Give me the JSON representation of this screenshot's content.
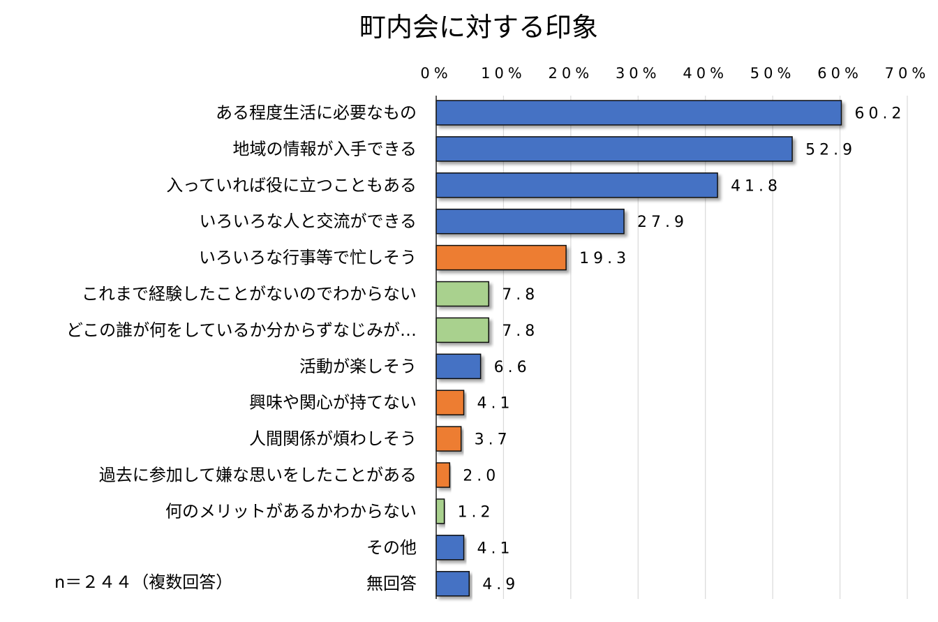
{
  "chart_data": {
    "type": "bar",
    "orientation": "horizontal",
    "title": "町内会に対する印象",
    "xlim": [
      0,
      70
    ],
    "x_ticks": [
      "0%",
      "10%",
      "20%",
      "30%",
      "40%",
      "50%",
      "60%",
      "70%"
    ],
    "grid": true,
    "categories": [
      "ある程度生活に必要なもの",
      "地域の情報が入手できる",
      "入っていれば役に立つこともある",
      "いろいろな人と交流ができる",
      "いろいろな行事等で忙しそう",
      "これまで経験したことがないのでわからない",
      "どこの誰が何をしているか分からずなじみが…",
      "活動が楽しそう",
      "興味や関心が持てない",
      "人間関係が煩わしそう",
      "過去に参加して嫌な思いをしたことがある",
      "何のメリットがあるかわからない",
      "その他",
      "無回答"
    ],
    "values": [
      60.2,
      52.9,
      41.8,
      27.9,
      19.3,
      7.8,
      7.8,
      6.6,
      4.1,
      3.7,
      2.0,
      1.2,
      4.1,
      4.9
    ],
    "value_labels": [
      "60.2",
      "52.9",
      "41.8",
      "27.9",
      "19.3",
      "7.8",
      "7.8",
      "6.6",
      "4.1",
      "3.7",
      "2.0",
      "1.2",
      "4.1",
      "4.9"
    ],
    "bar_colors": [
      "#4472C4",
      "#4472C4",
      "#4472C4",
      "#4472C4",
      "#ED7D31",
      "#A9D18E",
      "#A9D18E",
      "#4472C4",
      "#ED7D31",
      "#ED7D31",
      "#ED7D31",
      "#A9D18E",
      "#4472C4",
      "#4472C4"
    ],
    "note": "n＝２４４（複数回答）"
  }
}
